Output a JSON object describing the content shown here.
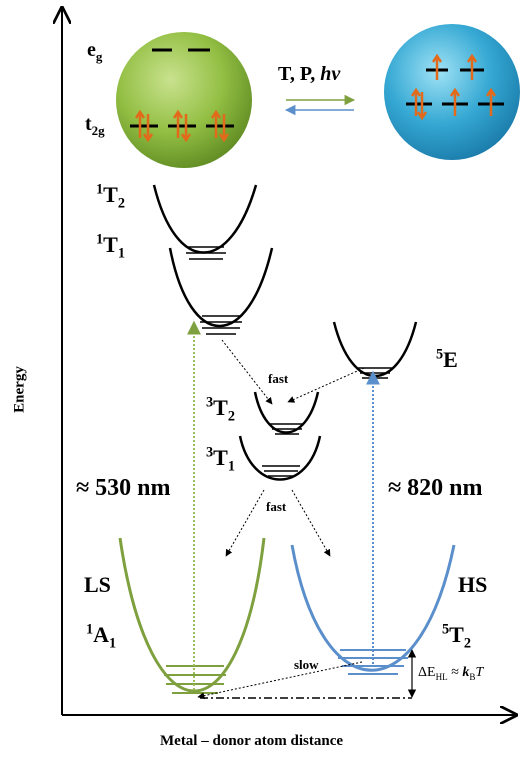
{
  "axes": {
    "y_label": "Energy",
    "x_label": "Metal – donor atom distance"
  },
  "orbitals": {
    "eg": {
      "symbol": "e",
      "sub": "g"
    },
    "t2g": {
      "symbol": "t",
      "sub": "2g"
    },
    "stimuli": {
      "text": "T, P, ",
      "italic": "hν"
    }
  },
  "states": {
    "T2_1": {
      "sup": "1",
      "main": "T",
      "sub": "2"
    },
    "T1_1": {
      "sup": "1",
      "main": "T",
      "sub": "1"
    },
    "T2_3": {
      "sup": "3",
      "main": "T",
      "sub": "2"
    },
    "T1_3": {
      "sup": "3",
      "main": "T",
      "sub": "1"
    },
    "E_5": {
      "sup": "5",
      "main": "E"
    },
    "A1_1": {
      "sup": "1",
      "main": "A",
      "sub": "1"
    },
    "T2_5": {
      "sup": "5",
      "main": "T",
      "sub": "2"
    }
  },
  "spin_states": {
    "ls": "LS",
    "hs": "HS"
  },
  "transitions": {
    "fast_1": "fast",
    "fast_2": "fast",
    "slow": "slow",
    "wavelength_ls": "≈ 530 nm",
    "wavelength_hs": "≈ 820 nm"
  },
  "energy_gap": {
    "delta": "ΔE",
    "sub": "HL",
    "approx": " ≈ ",
    "k": "k",
    "k_sub": "B",
    "T": "T"
  },
  "colors": {
    "ls_green": "#7ea03e",
    "hs_blue": "#5b8fcc",
    "electron_orange": "#e26a1a",
    "ls_sphere": "#8fbf3f",
    "hs_sphere": "#2fa3cf"
  }
}
